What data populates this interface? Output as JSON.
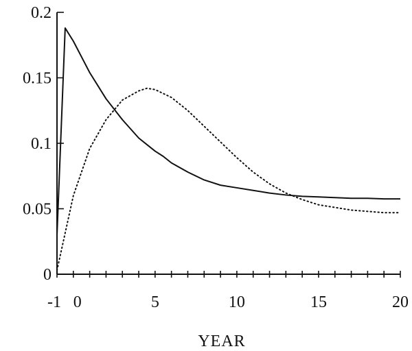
{
  "chart_data": {
    "type": "line",
    "title": "",
    "xlabel": "YEAR",
    "ylabel": "",
    "xlim": [
      -1,
      20
    ],
    "ylim": [
      0,
      0.2
    ],
    "xticks_major": [
      -1,
      0,
      5,
      10,
      15,
      20
    ],
    "xtick_labels": [
      "-1",
      "0",
      "5",
      "10",
      "15",
      "20"
    ],
    "xticks_minor_step": 1,
    "yticks": [
      0,
      0.05,
      0.1,
      0.15,
      0.2
    ],
    "ytick_labels": [
      "0",
      "0.05",
      "0.1",
      "0.15",
      "0.2"
    ],
    "grid": false,
    "legend": "none",
    "series": [
      {
        "style": "solid",
        "color": "#111111",
        "x": [
          -1,
          -0.5,
          0,
          0.5,
          1,
          1.5,
          2,
          2.5,
          3,
          3.5,
          4,
          4.5,
          5,
          5.5,
          6,
          7,
          8,
          9,
          10,
          11,
          12,
          13,
          14,
          15,
          16,
          17,
          18,
          19,
          20
        ],
        "y": [
          0.03,
          0.188,
          0.178,
          0.166,
          0.154,
          0.144,
          0.134,
          0.126,
          0.118,
          0.111,
          0.104,
          0.099,
          0.094,
          0.09,
          0.085,
          0.078,
          0.072,
          0.068,
          0.066,
          0.064,
          0.062,
          0.0605,
          0.0595,
          0.059,
          0.0585,
          0.058,
          0.058,
          0.0575,
          0.0575
        ]
      },
      {
        "style": "dotted",
        "color": "#111111",
        "x": [
          -1,
          0,
          1,
          2,
          3,
          4,
          4.5,
          5,
          6,
          7,
          8,
          9,
          10,
          11,
          12,
          13,
          14,
          15,
          16,
          17,
          18,
          19,
          20
        ],
        "y": [
          0.003,
          0.06,
          0.096,
          0.118,
          0.133,
          0.14,
          0.142,
          0.141,
          0.135,
          0.125,
          0.113,
          0.101,
          0.089,
          0.078,
          0.069,
          0.062,
          0.057,
          0.053,
          0.051,
          0.049,
          0.048,
          0.047,
          0.047
        ]
      }
    ]
  }
}
